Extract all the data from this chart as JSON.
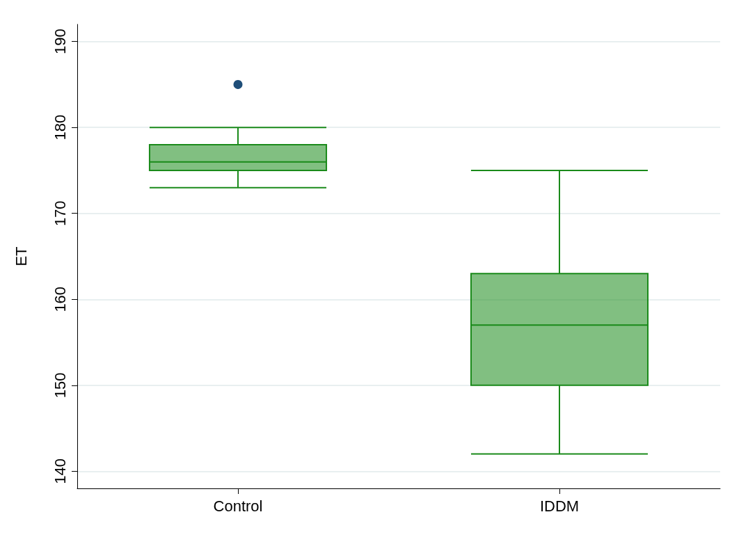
{
  "chart_data": {
    "type": "box",
    "ylabel": "ET",
    "categories": [
      "Control",
      "IDDM"
    ],
    "ylim": [
      138,
      192
    ],
    "yticks": [
      140,
      150,
      160,
      170,
      180,
      190
    ],
    "grid": "y",
    "series": [
      {
        "color": "#1a8a1a",
        "boxes": [
          {
            "low": 173,
            "q1": 175,
            "median": 176,
            "q3": 178,
            "high": 180
          },
          {
            "low": 142,
            "q1": 150,
            "median": 157,
            "q3": 163,
            "high": 175
          }
        ]
      },
      {
        "type": "scatter",
        "color": "#1f4e79",
        "x": [
          "Control"
        ],
        "values": [
          185
        ]
      }
    ]
  }
}
